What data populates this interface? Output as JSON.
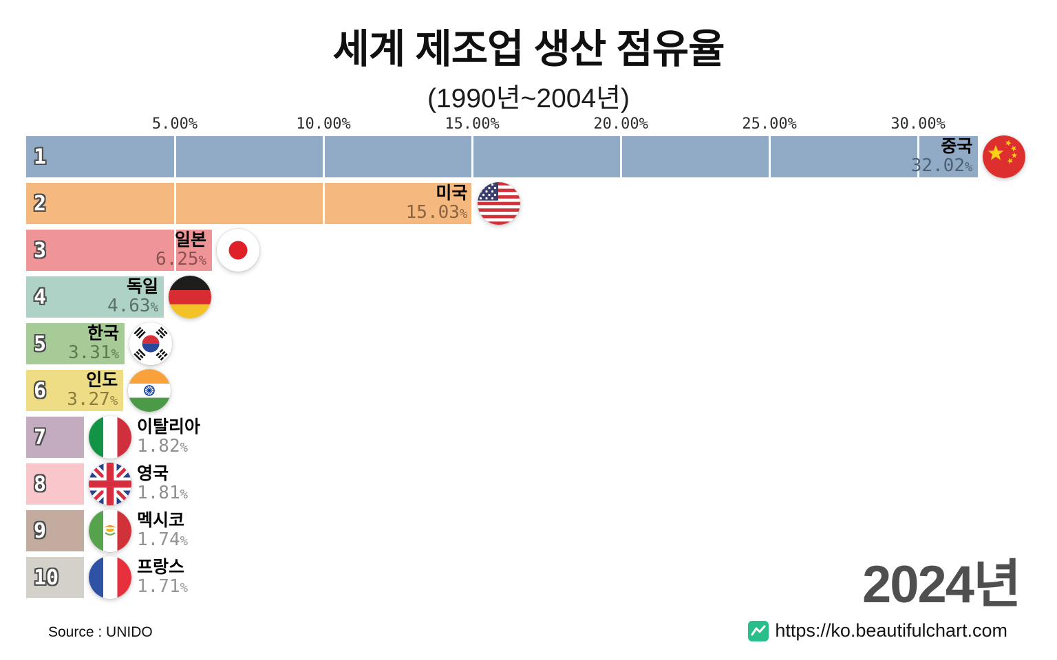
{
  "page": {
    "title": "세계 제조업 생산 점유율",
    "subtitle": "(1990년~2004년)",
    "year_label": "2024년",
    "source": "Source : UNIDO",
    "site_url": "https://ko.beautifulchart.com",
    "site_icon": "chart-wave-icon",
    "site_icon_color": "#2abf8a"
  },
  "chart_data": {
    "type": "bar",
    "orientation": "horizontal",
    "title": "세계 제조업 생산 점유율",
    "subtitle": "(1990년~2004년)",
    "current_year": "2024년",
    "value_unit": "%",
    "axis": {
      "tick_values": [
        5,
        10,
        15,
        20,
        25,
        30
      ],
      "tick_labels": [
        "5.00%",
        "10.00%",
        "15.00%",
        "20.00%",
        "25.00%",
        "30.00%"
      ],
      "xlim": [
        0,
        32.45
      ],
      "gridlines": true,
      "gridline_color": "#ffffff"
    },
    "bars": [
      {
        "rank": 1,
        "country": "중국",
        "flag": "cn",
        "value": 32.02,
        "value_label": "32.02",
        "bar_color": "#91aac6",
        "value_color": "#4e6071"
      },
      {
        "rank": 2,
        "country": "미국",
        "flag": "us",
        "value": 15.03,
        "value_label": "15.03",
        "bar_color": "#f5b87e",
        "value_color": "#8a6440"
      },
      {
        "rank": 3,
        "country": "일본",
        "flag": "jp",
        "value": 6.25,
        "value_label": "6.25",
        "bar_color": "#ef9597",
        "value_color": "#8a5052"
      },
      {
        "rank": 4,
        "country": "독일",
        "flag": "de",
        "value": 4.63,
        "value_label": "4.63",
        "bar_color": "#aed3c6",
        "value_color": "#5c7268"
      },
      {
        "rank": 5,
        "country": "한국",
        "flag": "kr",
        "value": 3.31,
        "value_label": "3.31",
        "bar_color": "#a6cb97",
        "value_color": "#5c7b4e"
      },
      {
        "rank": 6,
        "country": "인도",
        "flag": "in",
        "value": 3.27,
        "value_label": "3.27",
        "bar_color": "#eedd85",
        "value_color": "#8a7c3c"
      },
      {
        "rank": 7,
        "country": "이탈리아",
        "flag": "it",
        "value": 1.82,
        "value_label": "1.82",
        "bar_color": "#c3abc0",
        "value_color": "#8f8f93"
      },
      {
        "rank": 8,
        "country": "영국",
        "flag": "gb",
        "value": 1.81,
        "value_label": "1.81",
        "bar_color": "#f9c6cc",
        "value_color": "#8f8f93"
      },
      {
        "rank": 9,
        "country": "멕시코",
        "flag": "mx",
        "value": 1.74,
        "value_label": "1.74",
        "bar_color": "#c3aba0",
        "value_color": "#929292"
      },
      {
        "rank": 10,
        "country": "프랑스",
        "flag": "fr",
        "value": 1.71,
        "value_label": "1.71",
        "bar_color": "#d4d0ca",
        "value_color": "#969696"
      }
    ]
  }
}
